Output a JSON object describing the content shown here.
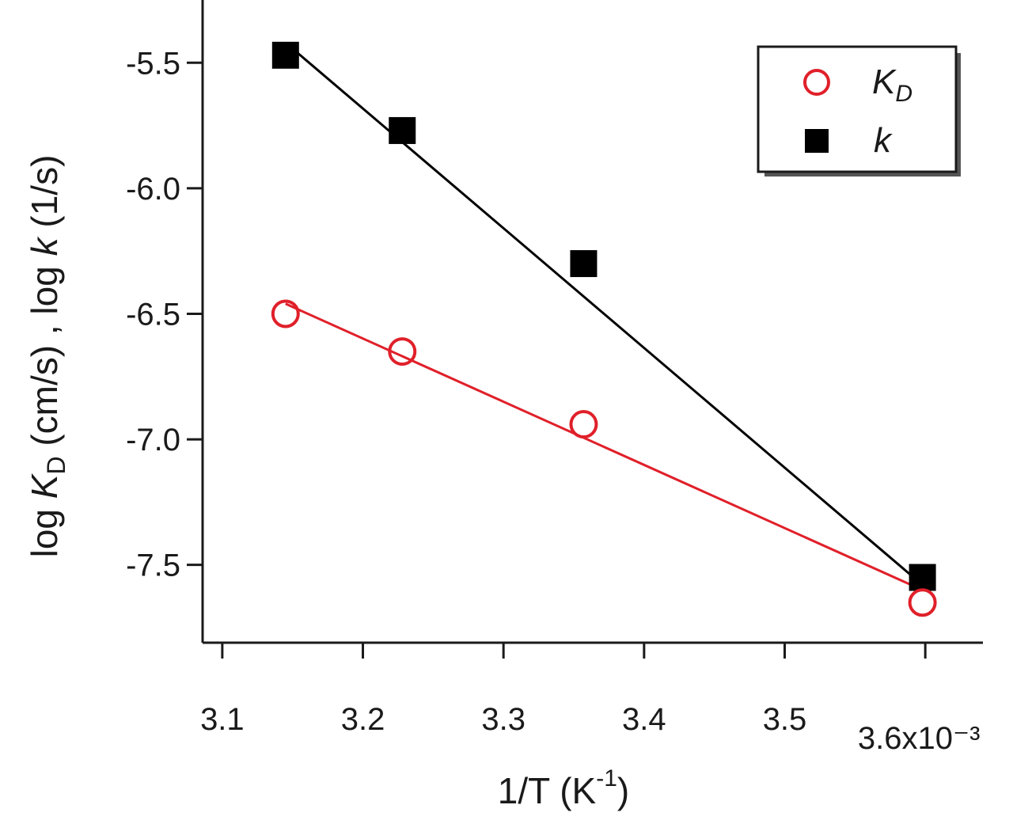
{
  "chart_data": {
    "type": "scatter",
    "xlabel": "1/T  (K⁻¹)",
    "ylabel": "log K_D (cm/s) , log k (1/s)",
    "x_tick_labels": [
      "3.1",
      "3.2",
      "3.3",
      "3.4",
      "3.5",
      "3.6x10⁻³"
    ],
    "x_ticks": [
      0.0031,
      0.0032,
      0.0033,
      0.0034,
      0.0035,
      0.0036
    ],
    "y_tick_labels": [
      "-5.5",
      "-6.0",
      "-6.5",
      "-7.0",
      "-7.5"
    ],
    "y_ticks": [
      -5.5,
      -6.0,
      -6.5,
      -7.0,
      -7.5
    ],
    "xlim": [
      0.003086,
      0.003641
    ],
    "ylim": [
      -7.81,
      -5.25
    ],
    "grid": false,
    "legend_position": "top-right",
    "series": [
      {
        "name": "K_D",
        "marker": "open-circle",
        "color": "#e0202a",
        "x": [
          0.003145,
          0.003228,
          0.003357,
          0.003598
        ],
        "y": [
          -6.5,
          -6.65,
          -6.94,
          -7.65
        ],
        "fit_line": {
          "x": [
            0.003145,
            0.003598
          ],
          "y": [
            -6.46,
            -7.6
          ]
        }
      },
      {
        "name": "k",
        "marker": "filled-square",
        "color": "#000000",
        "x": [
          0.003145,
          0.003228,
          0.003357,
          0.003598
        ],
        "y": [
          -5.47,
          -5.77,
          -6.3,
          -7.55
        ],
        "fit_line": {
          "x": [
            0.003145,
            0.003598
          ],
          "y": [
            -5.42,
            -7.58
          ]
        }
      }
    ]
  },
  "legend": {
    "items": [
      {
        "main": "K",
        "sub": "D",
        "marker": "open-circle",
        "color": "#e0202a"
      },
      {
        "main": "k",
        "sub": "",
        "marker": "filled-square",
        "color": "#000000"
      }
    ]
  },
  "axis_title_parts": {
    "y": {
      "log1": "log ",
      "K": "K",
      "Dsub": "D",
      "mid": " (cm/s) , log ",
      "k": "k",
      "end": " (1/s)"
    },
    "x": {
      "base": "1/T  (K",
      "sup": "-1",
      "close": ")"
    }
  }
}
